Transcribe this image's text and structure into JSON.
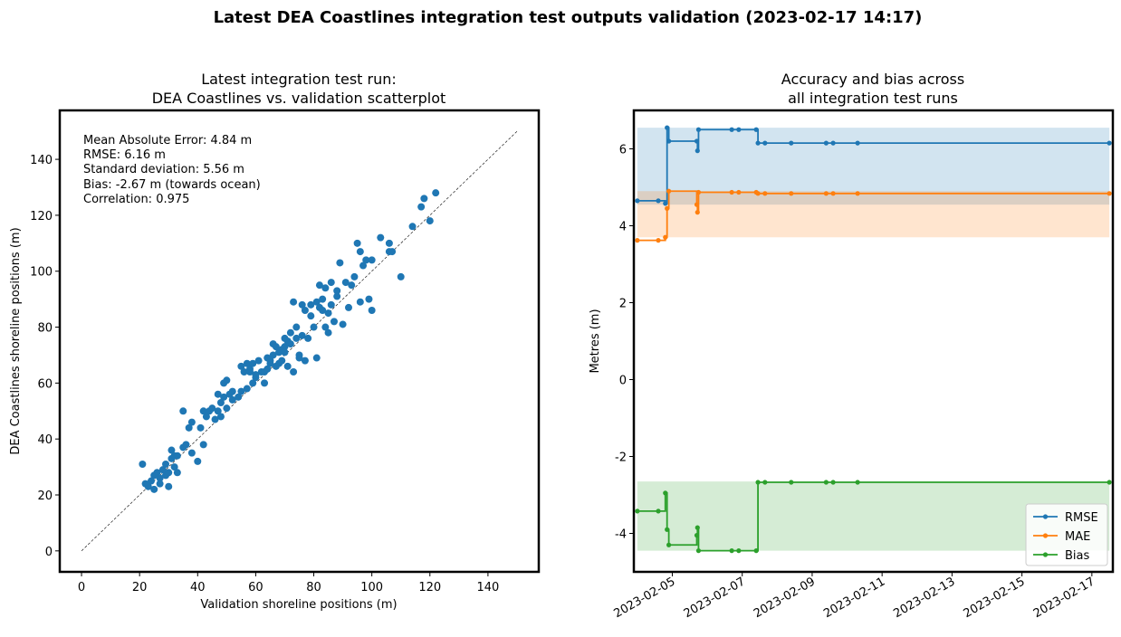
{
  "suptitle": "Latest DEA Coastlines integration test outputs validation (2023-02-17 14:17)",
  "chart_data": [
    {
      "type": "scatter",
      "title_line1": "Latest integration test run:",
      "title_line2": "DEA Coastlines vs. validation scatterplot",
      "xlabel": "Validation shoreline positions (m)",
      "ylabel": "DEA Coastlines shoreline positions (m)",
      "xlim": [
        -7.5,
        157.5
      ],
      "ylim": [
        -7.5,
        157.5
      ],
      "xticks": [
        0,
        20,
        40,
        60,
        80,
        100,
        120,
        140
      ],
      "yticks": [
        0,
        20,
        40,
        60,
        80,
        100,
        120,
        140
      ],
      "point_color": "#1f77b4",
      "reference_line": {
        "x": [
          0,
          150
        ],
        "y": [
          0,
          150
        ],
        "style": "dashed",
        "color": "#000000"
      },
      "stats": [
        "Mean Absolute Error: 4.84 m",
        "RMSE: 6.16 m",
        "Standard deviation: 5.56 m",
        "Bias: -2.67 m (towards ocean)",
        "Correlation: 0.975"
      ],
      "points": [
        [
          21,
          31
        ],
        [
          22,
          24
        ],
        [
          23,
          23
        ],
        [
          24,
          25
        ],
        [
          25,
          22
        ],
        [
          25,
          27
        ],
        [
          26,
          28
        ],
        [
          27,
          26
        ],
        [
          27,
          24
        ],
        [
          28,
          29
        ],
        [
          29,
          27
        ],
        [
          29,
          31
        ],
        [
          30,
          23
        ],
        [
          30,
          28
        ],
        [
          31,
          36
        ],
        [
          31,
          33
        ],
        [
          32,
          34
        ],
        [
          32,
          30
        ],
        [
          33,
          28
        ],
        [
          33,
          34
        ],
        [
          35,
          50
        ],
        [
          35,
          37
        ],
        [
          36,
          38
        ],
        [
          37,
          44
        ],
        [
          38,
          46
        ],
        [
          38,
          35
        ],
        [
          40,
          32
        ],
        [
          41,
          44
        ],
        [
          42,
          50
        ],
        [
          42,
          38
        ],
        [
          43,
          48
        ],
        [
          44,
          50
        ],
        [
          45,
          51
        ],
        [
          46,
          47
        ],
        [
          47,
          50
        ],
        [
          47,
          56
        ],
        [
          48,
          53
        ],
        [
          48,
          48
        ],
        [
          49,
          55
        ],
        [
          49,
          60
        ],
        [
          50,
          61
        ],
        [
          50,
          51
        ],
        [
          51,
          56
        ],
        [
          52,
          57
        ],
        [
          52,
          54
        ],
        [
          54,
          55
        ],
        [
          55,
          57
        ],
        [
          55,
          66
        ],
        [
          56,
          64
        ],
        [
          57,
          58
        ],
        [
          57,
          67
        ],
        [
          58,
          64
        ],
        [
          58,
          65
        ],
        [
          59,
          60
        ],
        [
          59,
          67
        ],
        [
          60,
          62
        ],
        [
          60,
          63
        ],
        [
          61,
          68
        ],
        [
          62,
          64
        ],
        [
          63,
          60
        ],
        [
          63,
          64
        ],
        [
          64,
          69
        ],
        [
          64,
          65
        ],
        [
          65,
          67
        ],
        [
          65,
          68
        ],
        [
          66,
          70
        ],
        [
          66,
          74
        ],
        [
          67,
          66
        ],
        [
          67,
          73
        ],
        [
          68,
          67
        ],
        [
          68,
          71
        ],
        [
          69,
          72
        ],
        [
          69,
          68
        ],
        [
          70,
          73
        ],
        [
          70,
          76
        ],
        [
          70,
          71
        ],
        [
          71,
          66
        ],
        [
          71,
          75
        ],
        [
          72,
          78
        ],
        [
          72,
          74
        ],
        [
          73,
          64
        ],
        [
          73,
          89
        ],
        [
          74,
          80
        ],
        [
          74,
          76
        ],
        [
          75,
          70
        ],
        [
          75,
          69
        ],
        [
          76,
          88
        ],
        [
          76,
          77
        ],
        [
          77,
          86
        ],
        [
          77,
          68
        ],
        [
          78,
          76
        ],
        [
          79,
          88
        ],
        [
          79,
          84
        ],
        [
          80,
          80
        ],
        [
          81,
          69
        ],
        [
          81,
          89
        ],
        [
          82,
          87
        ],
        [
          82,
          95
        ],
        [
          83,
          90
        ],
        [
          83,
          86
        ],
        [
          84,
          80
        ],
        [
          84,
          94
        ],
        [
          85,
          85
        ],
        [
          85,
          78
        ],
        [
          86,
          96
        ],
        [
          86,
          88
        ],
        [
          87,
          82
        ],
        [
          88,
          91
        ],
        [
          88,
          93
        ],
        [
          89,
          103
        ],
        [
          90,
          81
        ],
        [
          91,
          96
        ],
        [
          92,
          87
        ],
        [
          93,
          95
        ],
        [
          94,
          98
        ],
        [
          95,
          110
        ],
        [
          96,
          107
        ],
        [
          96,
          89
        ],
        [
          97,
          102
        ],
        [
          98,
          104
        ],
        [
          99,
          90
        ],
        [
          100,
          104
        ],
        [
          100,
          86
        ],
        [
          103,
          112
        ],
        [
          106,
          110
        ],
        [
          106,
          107
        ],
        [
          107,
          107
        ],
        [
          110,
          98
        ],
        [
          114,
          116
        ],
        [
          117,
          123
        ],
        [
          118,
          126
        ],
        [
          120,
          118
        ],
        [
          122,
          128
        ]
      ]
    },
    {
      "type": "line",
      "title_line1": "Accuracy and bias across",
      "title_line2": "all integration test runs",
      "xlabel": "",
      "ylabel": "Metres (m)",
      "x_unit": "days since 2023-02-04",
      "xlim": [
        -0.1,
        13.6
      ],
      "ylim": [
        -5.0,
        7.0
      ],
      "yticks": [
        -4,
        -2,
        0,
        2,
        4,
        6
      ],
      "xtick_labels": [
        "2023-02-05",
        "2023-02-07",
        "2023-02-09",
        "2023-02-11",
        "2023-02-13",
        "2023-02-15",
        "2023-02-17"
      ],
      "xtick_values": [
        1,
        3,
        5,
        7,
        9,
        11,
        13
      ],
      "x": [
        0,
        0.6,
        0.8,
        0.85,
        0.9,
        1.7,
        1.72,
        1.75,
        2.7,
        2.9,
        3.4,
        3.45,
        3.65,
        4.4,
        5.4,
        5.6,
        6.3,
        13.5
      ],
      "series": [
        {
          "name": "RMSE",
          "color": "#1f77b4",
          "band": [
            4.55,
            6.55
          ],
          "values": [
            4.65,
            4.65,
            4.58,
            6.55,
            6.2,
            6.2,
            5.95,
            6.5,
            6.5,
            6.5,
            6.5,
            6.15,
            6.15,
            6.15,
            6.15,
            6.15,
            6.15,
            6.15
          ]
        },
        {
          "name": "MAE",
          "color": "#ff7f0e",
          "band": [
            3.7,
            4.9
          ],
          "values": [
            3.62,
            3.62,
            3.7,
            4.45,
            4.9,
            4.55,
            4.35,
            4.87,
            4.87,
            4.87,
            4.87,
            4.84,
            4.84,
            4.84,
            4.84,
            4.84,
            4.84,
            4.84
          ]
        },
        {
          "name": "Bias",
          "color": "#2ca02c",
          "band": [
            -4.45,
            -2.65
          ],
          "values": [
            -3.42,
            -3.42,
            -2.95,
            -3.9,
            -4.3,
            -4.05,
            -3.85,
            -4.45,
            -4.45,
            -4.45,
            -4.45,
            -2.67,
            -2.67,
            -2.67,
            -2.67,
            -2.67,
            -2.67,
            -2.67
          ]
        }
      ],
      "legend_position": "lower-right"
    }
  ]
}
